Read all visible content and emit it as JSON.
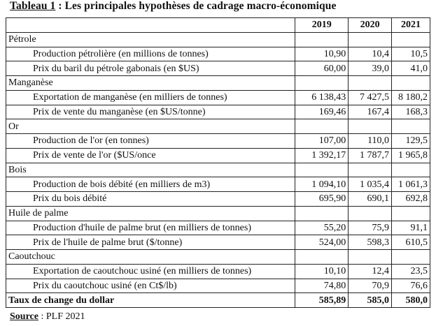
{
  "title": {
    "label": "Tableau 1",
    "text": " : Les principales  hypothèses  de cadrage  macro-économique"
  },
  "table": {
    "columns": [
      "2019",
      "2020",
      "2021"
    ],
    "rows": [
      {
        "type": "section",
        "label": "Pétrole"
      },
      {
        "type": "item",
        "label": "Production pétrolière (en millions de tonnes)",
        "values": [
          "10,90",
          "10,4",
          "10,5"
        ]
      },
      {
        "type": "item",
        "label": "Prix du baril du pétrole gabonais (en $US)",
        "values": [
          "60,00",
          "39,0",
          "41,0"
        ]
      },
      {
        "type": "section",
        "label": "Manganèse"
      },
      {
        "type": "item",
        "label": "Exportation de manganèse (en milliers de tonnes)",
        "values": [
          "6 138,43",
          "7 427,5",
          "8 180,2"
        ]
      },
      {
        "type": "item",
        "label": "Prix de vente du manganèse (en $US/tonne)",
        "values": [
          "169,46",
          "167,4",
          "168,3"
        ]
      },
      {
        "type": "section",
        "label": "Or"
      },
      {
        "type": "item",
        "label": "Production de l'or (en tonnes)",
        "values": [
          "107,00",
          "110,0",
          "129,5"
        ]
      },
      {
        "type": "item",
        "label": "Prix de vente de l'or ($US/once",
        "values": [
          "1 392,17",
          "1 787,7",
          "1 965,8"
        ]
      },
      {
        "type": "section",
        "label": "Bois"
      },
      {
        "type": "item",
        "label": "Production de bois débité (en milliers de m3)",
        "values": [
          "1 094,10",
          "1 035,4",
          "1 061,3"
        ]
      },
      {
        "type": "item",
        "label": "Prix du bois débité",
        "values": [
          "695,90",
          "690,1",
          "692,8"
        ]
      },
      {
        "type": "section",
        "label": "Huile de palme"
      },
      {
        "type": "item",
        "label": "Production d'huile de palme brut (en milliers de tonnes)",
        "values": [
          "55,20",
          "75,9",
          "91,1"
        ]
      },
      {
        "type": "item",
        "label": "Prix de l'huile de palme brut ($/tonne)",
        "values": [
          "524,00",
          "598,3",
          "610,5"
        ]
      },
      {
        "type": "section",
        "label": "Caoutchouc"
      },
      {
        "type": "item",
        "label": "Exportation de caoutchouc usiné (en milliers de tonnes)",
        "values": [
          "10,10",
          "12,4",
          "23,5"
        ]
      },
      {
        "type": "item",
        "label": "Prix du caoutchouc usiné (en Ct$/lb)",
        "values": [
          "74,80",
          "70,9",
          "76,6"
        ]
      },
      {
        "type": "total",
        "label": "Taux de change du dollar",
        "values": [
          "585,89",
          "585,0",
          "580,0"
        ]
      }
    ]
  },
  "source": {
    "label": "Source",
    "text": " : PLF 2021"
  }
}
